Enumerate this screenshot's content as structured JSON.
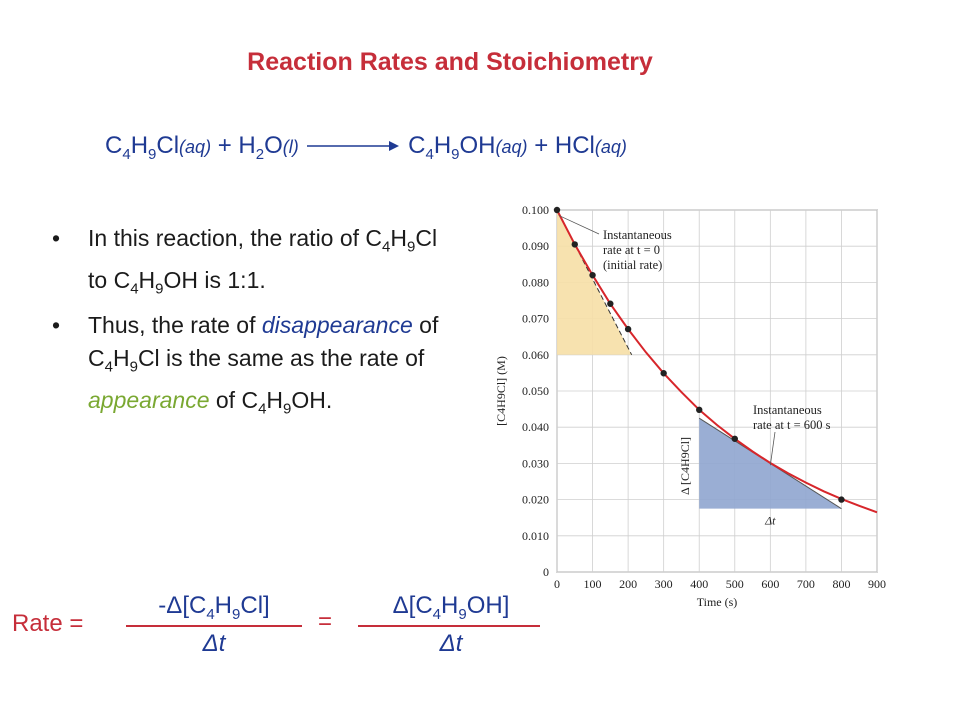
{
  "slide": {
    "title": "Reaction Rates and Stoichiometry",
    "equation": {
      "reactant1": "C4H9Cl",
      "reactant1_state": "(aq)",
      "plus1": "+",
      "reactant2": "H2O",
      "reactant2_state": "(l)",
      "arrow": "→",
      "product1": "C4H9OH",
      "product1_state": "(aq)",
      "plus2": "+",
      "product2": "HCl",
      "product2_state": "(aq)"
    },
    "bullets": [
      {
        "text": "In this reaction, the ratio of C4H9Cl to C4H9OH is 1:1."
      },
      {
        "pre": "Thus, the rate of ",
        "em1": "disappearance",
        "mid": " of C4H9Cl is the same as the rate of ",
        "em2": "appearance",
        "post": " of C4H9OH."
      }
    ],
    "rate_expression": {
      "label": "Rate =",
      "left_numerator": "-Δ[C4H9Cl]",
      "left_denominator": "Δt",
      "equals": "=",
      "right_numerator": "Δ[C4H9OH]",
      "right_denominator": "Δt"
    }
  },
  "colors": {
    "title": "#c62e3a",
    "equation": "#1f3a93",
    "curve": "#d7262b",
    "initial_triangle": "#f6dfa6",
    "later_triangle": "#8fa5cf",
    "points": "#222222"
  },
  "chart_data": {
    "type": "scatter",
    "xlabel": "Time (s)",
    "ylabel": "[C4H9Cl] (M)",
    "xlim": [
      0,
      900
    ],
    "ylim": [
      0,
      0.1
    ],
    "x_ticks": [
      0,
      100,
      200,
      300,
      400,
      500,
      600,
      700,
      800,
      900
    ],
    "y_ticks": [
      0,
      0.01,
      0.02,
      0.03,
      0.04,
      0.05,
      0.06,
      0.07,
      0.08,
      0.09,
      0.1
    ],
    "y_tick_labels": [
      "0",
      "0.010",
      "0.020",
      "0.030",
      "0.040",
      "0.050",
      "0.060",
      "0.070",
      "0.080",
      "0.090",
      "0.100"
    ],
    "grid": true,
    "series": [
      {
        "x": [
          0,
          50,
          100,
          150,
          200,
          300,
          400,
          500,
          800
        ],
        "y": [
          0.1,
          0.0905,
          0.082,
          0.0741,
          0.0671,
          0.0549,
          0.0448,
          0.0368,
          0.02
        ]
      }
    ],
    "fit_curve": {
      "x": [
        0,
        50,
        100,
        150,
        200,
        250,
        300,
        350,
        400,
        450,
        500,
        550,
        600,
        650,
        700,
        750,
        800,
        850,
        900
      ],
      "y": [
        0.1,
        0.0905,
        0.082,
        0.0741,
        0.0671,
        0.0607,
        0.0549,
        0.0497,
        0.0448,
        0.0406,
        0.0368,
        0.0333,
        0.0301,
        0.0273,
        0.0247,
        0.0223,
        0.0202,
        0.0183,
        0.0165
      ]
    },
    "tangent_initial": {
      "x": [
        0,
        210
      ],
      "y": [
        0.1,
        0.06
      ]
    },
    "tangent_600": {
      "x": [
        400,
        800
      ],
      "y": [
        0.0425,
        0.0175
      ]
    },
    "annotations": [
      {
        "lines": [
          "Instantaneous",
          "rate at t = 0",
          "(initial rate)"
        ]
      },
      {
        "lines": [
          "Instantaneous",
          "rate at t = 600 s"
        ]
      },
      {
        "text": "Δ [C4H9Cl]"
      },
      {
        "text": "Δt"
      }
    ]
  }
}
